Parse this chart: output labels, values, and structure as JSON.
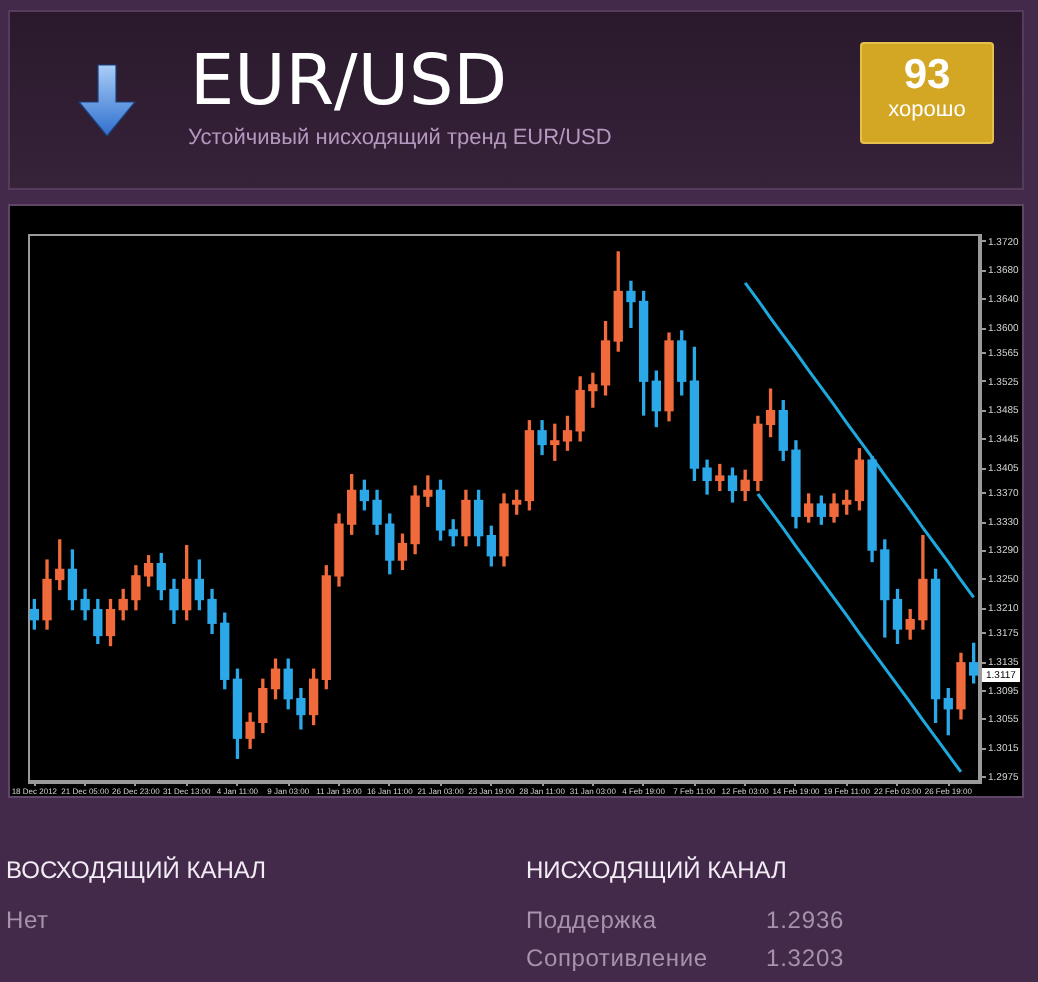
{
  "chart_data": {
    "type": "candlestick",
    "title": "EUR/USD",
    "subtitle": "Устойчивый нисходящий тренд EUR/USD",
    "categories": [
      "18 Dec 2012",
      null,
      null,
      null,
      "21 Dec 05:00",
      null,
      null,
      null,
      "26 Dec 23:00",
      null,
      null,
      null,
      "31 Dec 13:00",
      null,
      null,
      null,
      "4 Jan 11:00",
      null,
      null,
      null,
      "9 Jan 03:00",
      null,
      null,
      null,
      "11 Jan 19:00",
      null,
      null,
      null,
      "16 Jan 11:00",
      null,
      null,
      null,
      "21 Jan 03:00",
      null,
      null,
      null,
      "23 Jan 19:00",
      null,
      null,
      null,
      "28 Jan 11:00",
      null,
      null,
      null,
      "31 Jan 03:00",
      null,
      null,
      null,
      "4 Feb 19:00",
      null,
      null,
      null,
      "7 Feb 11:00",
      null,
      null,
      null,
      "12 Feb 03:00",
      null,
      null,
      null,
      "14 Feb 19:00",
      null,
      null,
      null,
      "19 Feb 11:00",
      null,
      null,
      null,
      "22 Feb 03:00",
      null,
      null,
      null,
      "26 Feb 19:00",
      null,
      null
    ],
    "ohlc": [
      [
        1.3208,
        1.3222,
        1.3181,
        1.3194
      ],
      [
        1.3194,
        1.3277,
        1.3181,
        1.325
      ],
      [
        1.325,
        1.3305,
        1.3236,
        1.3264
      ],
      [
        1.3264,
        1.3291,
        1.3208,
        1.3222
      ],
      [
        1.3222,
        1.3236,
        1.3194,
        1.3208
      ],
      [
        1.3208,
        1.3222,
        1.3161,
        1.3172
      ],
      [
        1.3172,
        1.3222,
        1.3158,
        1.3208
      ],
      [
        1.3208,
        1.3236,
        1.3194,
        1.3222
      ],
      [
        1.3222,
        1.3269,
        1.3208,
        1.3255
      ],
      [
        1.3255,
        1.3283,
        1.3241,
        1.3272
      ],
      [
        1.3272,
        1.3286,
        1.3222,
        1.3236
      ],
      [
        1.3236,
        1.325,
        1.3189,
        1.3208
      ],
      [
        1.3208,
        1.3297,
        1.3194,
        1.325
      ],
      [
        1.325,
        1.3277,
        1.3208,
        1.3222
      ],
      [
        1.3222,
        1.3236,
        1.3175,
        1.3189
      ],
      [
        1.3189,
        1.3203,
        1.3098,
        1.3111
      ],
      [
        1.3111,
        1.3125,
        1.3001,
        1.3029
      ],
      [
        1.3029,
        1.3064,
        1.3015,
        1.3051
      ],
      [
        1.3051,
        1.3111,
        1.3037,
        1.3098
      ],
      [
        1.3098,
        1.3139,
        1.3084,
        1.3125
      ],
      [
        1.3125,
        1.3139,
        1.307,
        1.3084
      ],
      [
        1.3084,
        1.3098,
        1.3042,
        1.3062
      ],
      [
        1.3062,
        1.3125,
        1.3048,
        1.3111
      ],
      [
        1.3111,
        1.3269,
        1.3098,
        1.3255
      ],
      [
        1.3255,
        1.3341,
        1.3241,
        1.3327
      ],
      [
        1.3327,
        1.3396,
        1.3313,
        1.3374
      ],
      [
        1.3374,
        1.3388,
        1.3347,
        1.336
      ],
      [
        1.336,
        1.3374,
        1.3313,
        1.3327
      ],
      [
        1.3327,
        1.3341,
        1.3258,
        1.3277
      ],
      [
        1.3277,
        1.3313,
        1.3264,
        1.33
      ],
      [
        1.33,
        1.338,
        1.3286,
        1.3366
      ],
      [
        1.3366,
        1.3394,
        1.3352,
        1.3374
      ],
      [
        1.3374,
        1.3388,
        1.3305,
        1.3319
      ],
      [
        1.3319,
        1.3333,
        1.3297,
        1.3311
      ],
      [
        1.3311,
        1.3374,
        1.3297,
        1.336
      ],
      [
        1.336,
        1.3374,
        1.3297,
        1.3311
      ],
      [
        1.3311,
        1.3324,
        1.3269,
        1.3283
      ],
      [
        1.3283,
        1.3369,
        1.3269,
        1.3355
      ],
      [
        1.3355,
        1.3374,
        1.3341,
        1.336
      ],
      [
        1.336,
        1.3471,
        1.3347,
        1.3457
      ],
      [
        1.3457,
        1.3471,
        1.3424,
        1.3438
      ],
      [
        1.3438,
        1.3466,
        1.3416,
        1.3443
      ],
      [
        1.3443,
        1.3477,
        1.343,
        1.3457
      ],
      [
        1.3457,
        1.3532,
        1.3443,
        1.3513
      ],
      [
        1.3513,
        1.3537,
        1.349,
        1.3521
      ],
      [
        1.3521,
        1.3609,
        1.3507,
        1.3582
      ],
      [
        1.3582,
        1.3706,
        1.3568,
        1.3651
      ],
      [
        1.3651,
        1.3665,
        1.3601,
        1.3637
      ],
      [
        1.3637,
        1.3651,
        1.3479,
        1.3526
      ],
      [
        1.3526,
        1.354,
        1.3463,
        1.3485
      ],
      [
        1.3485,
        1.3593,
        1.3471,
        1.3582
      ],
      [
        1.3582,
        1.3596,
        1.3507,
        1.3526
      ],
      [
        1.3526,
        1.3573,
        1.3388,
        1.3405
      ],
      [
        1.3405,
        1.3416,
        1.3369,
        1.3388
      ],
      [
        1.3388,
        1.341,
        1.3374,
        1.3394
      ],
      [
        1.3394,
        1.3405,
        1.3358,
        1.3374
      ],
      [
        1.3374,
        1.3402,
        1.336,
        1.3388
      ],
      [
        1.3388,
        1.3477,
        1.3374,
        1.3466
      ],
      [
        1.3466,
        1.3515,
        1.3449,
        1.3485
      ],
      [
        1.3485,
        1.3499,
        1.3416,
        1.343
      ],
      [
        1.343,
        1.3443,
        1.3322,
        1.3338
      ],
      [
        1.3338,
        1.3369,
        1.333,
        1.3355
      ],
      [
        1.3355,
        1.3366,
        1.3327,
        1.3338
      ],
      [
        1.3338,
        1.3369,
        1.333,
        1.3355
      ],
      [
        1.3355,
        1.3374,
        1.3341,
        1.336
      ],
      [
        1.336,
        1.3432,
        1.3347,
        1.3416
      ],
      [
        1.3416,
        1.3421,
        1.3275,
        1.3291
      ],
      [
        1.3291,
        1.3305,
        1.317,
        1.3222
      ],
      [
        1.3222,
        1.3236,
        1.3161,
        1.3181
      ],
      [
        1.3181,
        1.3208,
        1.3167,
        1.3194
      ],
      [
        1.3194,
        1.3311,
        1.3181,
        1.325
      ],
      [
        1.325,
        1.3264,
        1.3051,
        1.3084
      ],
      [
        1.3084,
        1.3098,
        1.3034,
        1.307
      ],
      [
        1.307,
        1.3147,
        1.3056,
        1.3134
      ],
      [
        1.3134,
        1.3161,
        1.3106,
        1.3117
      ]
    ],
    "colors": [
      "#2ba8e8",
      "#f06a3c",
      "#f06a3c",
      "#2ba8e8",
      "#2ba8e8",
      "#2ba8e8",
      "#f06a3c",
      "#f06a3c",
      "#f06a3c",
      "#f06a3c",
      "#2ba8e8",
      "#2ba8e8",
      "#f06a3c",
      "#2ba8e8",
      "#2ba8e8",
      "#2ba8e8",
      "#2ba8e8",
      "#f06a3c",
      "#f06a3c",
      "#f06a3c",
      "#2ba8e8",
      "#2ba8e8",
      "#f06a3c",
      "#f06a3c",
      "#f06a3c",
      "#f06a3c",
      "#2ba8e8",
      "#2ba8e8",
      "#2ba8e8",
      "#f06a3c",
      "#f06a3c",
      "#f06a3c",
      "#2ba8e8",
      "#2ba8e8",
      "#f06a3c",
      "#2ba8e8",
      "#2ba8e8",
      "#f06a3c",
      "#f06a3c",
      "#f06a3c",
      "#2ba8e8",
      "#f06a3c",
      "#f06a3c",
      "#f06a3c",
      "#f06a3c",
      "#f06a3c",
      "#f06a3c",
      "#2ba8e8",
      "#2ba8e8",
      "#2ba8e8",
      "#f06a3c",
      "#2ba8e8",
      "#2ba8e8",
      "#2ba8e8",
      "#f06a3c",
      "#2ba8e8",
      "#f06a3c",
      "#f06a3c",
      "#f06a3c",
      "#2ba8e8",
      "#2ba8e8",
      "#f06a3c",
      "#2ba8e8",
      "#f06a3c",
      "#f06a3c",
      "#f06a3c",
      "#2ba8e8",
      "#2ba8e8",
      "#2ba8e8",
      "#f06a3c",
      "#f06a3c",
      "#2ba8e8",
      "#2ba8e8",
      "#f06a3c",
      "#2ba8e8"
    ],
    "series": [
      {
        "type": "line",
        "color": "#1ea9de",
        "values": [
          null,
          null,
          null,
          null,
          null,
          null,
          null,
          null,
          null,
          null,
          null,
          null,
          null,
          null,
          null,
          null,
          null,
          null,
          null,
          null,
          null,
          null,
          null,
          null,
          null,
          null,
          null,
          null,
          null,
          null,
          null,
          null,
          null,
          null,
          null,
          null,
          null,
          null,
          null,
          null,
          null,
          null,
          null,
          null,
          null,
          null,
          null,
          null,
          null,
          null,
          null,
          null,
          null,
          null,
          null,
          null,
          1.3663,
          1.3639,
          1.3614,
          1.359,
          1.3566,
          1.3541,
          1.3517,
          1.3493,
          1.3468,
          1.3444,
          1.342,
          1.3395,
          1.3371,
          1.3347,
          1.3322,
          1.3298,
          1.3274,
          1.3249,
          1.3225
        ]
      },
      {
        "type": "line",
        "color": "#1ea9de",
        "values": [
          null,
          null,
          null,
          null,
          null,
          null,
          null,
          null,
          null,
          null,
          null,
          null,
          null,
          null,
          null,
          null,
          null,
          null,
          null,
          null,
          null,
          null,
          null,
          null,
          null,
          null,
          null,
          null,
          null,
          null,
          null,
          null,
          null,
          null,
          null,
          null,
          null,
          null,
          null,
          null,
          null,
          null,
          null,
          null,
          null,
          null,
          null,
          null,
          null,
          null,
          null,
          null,
          null,
          null,
          null,
          null,
          null,
          1.3369,
          1.3345,
          1.3321,
          1.3296,
          1.3272,
          1.3248,
          1.3224,
          1.32,
          1.3175,
          1.3151,
          1.3127,
          1.3103,
          1.3079,
          1.3054,
          1.303,
          1.3006,
          1.2982,
          null
        ]
      }
    ],
    "ylim": [
      1.2968,
      1.3731
    ],
    "yticks": [
      {
        "value": 1.372,
        "label": "1.3720"
      },
      {
        "value": 1.368,
        "label": "1.3680"
      },
      {
        "value": 1.364,
        "label": "1.3640"
      },
      {
        "value": 1.36,
        "label": "1.3600"
      },
      1.3565,
      1.3525,
      1.3485,
      1.3445,
      1.3405,
      {
        "value": 1.337,
        "label": "1.3370"
      },
      {
        "value": 1.333,
        "label": "1.3330"
      },
      {
        "value": 1.329,
        "label": "1.3290"
      },
      {
        "value": 1.325,
        "label": "1.3250"
      },
      {
        "value": 1.321,
        "label": "1.3210"
      },
      1.3175,
      1.3135,
      1.3095,
      1.3055,
      1.3015,
      1.2975
    ],
    "annotations": [
      "93",
      "хорошо",
      "ВОСХОДЯЩИЙ КАНАЛ",
      "Нет",
      "НИСХОДЯЩИЙ КАНАЛ",
      "Поддержка",
      "1.2936",
      "Сопротивление",
      "1.3203",
      {
        "text": "1.3117",
        "y": 1.3117
      }
    ]
  }
}
